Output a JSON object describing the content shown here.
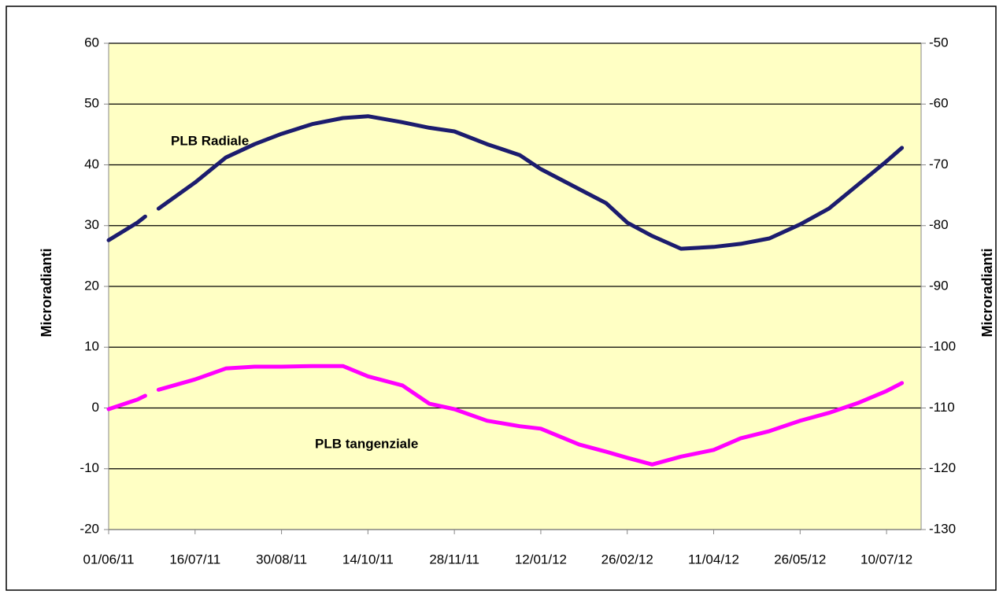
{
  "chart_data": {
    "type": "line",
    "ylabel": "Microradianti",
    "y2label": "Microradianti",
    "x": [
      "2011-06-01",
      "2011-06-16",
      "2011-06-20",
      "2011-06-23",
      "2011-06-27",
      "2011-07-16",
      "2011-08-01",
      "2011-08-16",
      "2011-08-30",
      "2011-09-15",
      "2011-10-01",
      "2011-10-14",
      "2011-11-01",
      "2011-11-15",
      "2011-11-28",
      "2011-12-15",
      "2012-01-01",
      "2012-01-12",
      "2012-02-01",
      "2012-02-15",
      "2012-02-26",
      "2012-03-10",
      "2012-03-25",
      "2012-04-11",
      "2012-04-25",
      "2012-05-10",
      "2012-05-26",
      "2012-06-10",
      "2012-06-25",
      "2012-07-10",
      "2012-07-18"
    ],
    "series": [
      {
        "name": "PLB Radiale",
        "color": "#1c1c6e",
        "values": [
          27.6,
          30.5,
          31.5,
          null,
          32.8,
          37.1,
          41.2,
          43.4,
          45.1,
          46.7,
          47.7,
          48.0,
          47.0,
          46.1,
          45.5,
          43.4,
          41.6,
          39.3,
          36.0,
          33.7,
          30.5,
          28.3,
          26.2,
          26.5,
          27.0,
          27.9,
          30.2,
          32.8,
          36.7,
          40.6,
          42.8
        ]
      },
      {
        "name": "PLB tangenziale",
        "color": "#ff00ff",
        "values": [
          -0.2,
          1.4,
          2.0,
          null,
          3.0,
          4.7,
          6.5,
          6.8,
          6.8,
          6.9,
          6.9,
          5.2,
          3.7,
          0.7,
          -0.2,
          -2.1,
          -3.0,
          -3.4,
          -6.0,
          -7.2,
          -8.2,
          -9.3,
          -8.0,
          -6.9,
          -5.0,
          -3.8,
          -2.1,
          -0.8,
          0.8,
          2.8,
          4.1
        ]
      }
    ],
    "xlim": [
      "2011-06-01",
      "2012-07-28"
    ],
    "xticks": [
      {
        "value": "2011-06-01",
        "label": "01/06/11"
      },
      {
        "value": "2011-07-16",
        "label": "16/07/11"
      },
      {
        "value": "2011-08-30",
        "label": "30/08/11"
      },
      {
        "value": "2011-10-14",
        "label": "14/10/11"
      },
      {
        "value": "2011-11-28",
        "label": "28/11/11"
      },
      {
        "value": "2012-01-12",
        "label": "12/01/12"
      },
      {
        "value": "2012-02-26",
        "label": "26/02/12"
      },
      {
        "value": "2012-04-11",
        "label": "11/04/12"
      },
      {
        "value": "2012-05-26",
        "label": "26/05/12"
      },
      {
        "value": "2012-07-10",
        "label": "10/07/12"
      }
    ],
    "ylim": [
      -20,
      60
    ],
    "yticks": [
      -20,
      -10,
      0,
      10,
      20,
      30,
      40,
      50,
      60
    ],
    "y2lim": [
      -130,
      -50
    ],
    "y2ticks": [
      -130,
      -120,
      -110,
      -100,
      -90,
      -80,
      -70,
      -60,
      -50
    ],
    "grid": true,
    "background": "#ffffc4"
  }
}
